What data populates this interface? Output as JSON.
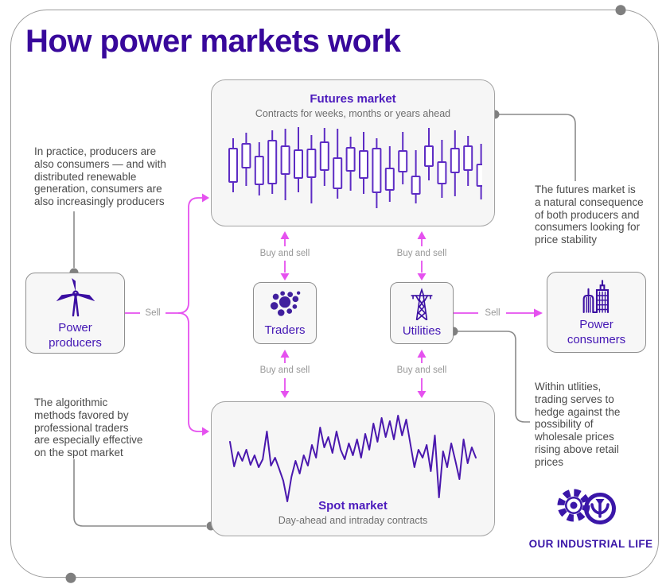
{
  "title": "How power markets work",
  "colors": {
    "title_indigo": "#38089b",
    "box_label_purple": "#4c1bbd",
    "node_label_purple": "#4316b4",
    "icon_indigo": "#3b0fa2",
    "magenta_flow": "#e551ef",
    "gray_connector": "#8a8a8a",
    "annotation_gray": "#4a4a4a",
    "box_fill": "#f6f6f6",
    "box_border": "#a3a3a3",
    "logo_purple": "#3a16a8"
  },
  "boxes": {
    "futures": {
      "title": "Futures market",
      "subtitle": "Contracts for weeks, months or years ahead"
    },
    "spot": {
      "title": "Spot market",
      "subtitle": "Day-ahead and intraday contracts"
    }
  },
  "nodes": {
    "producers": {
      "label": "Power\nproducers",
      "icon": "wind-turbine-icon"
    },
    "traders": {
      "label": "Traders",
      "icon": "bubble-cluster-icon"
    },
    "utilities": {
      "label": "Utilities",
      "icon": "transmission-tower-icon"
    },
    "consumers": {
      "label": "Power\nconsumers",
      "icon": "city-buildings-icon"
    }
  },
  "edge_labels": {
    "producers_sell": "Sell",
    "utilities_sell": "Sell",
    "futures_traders": "Buy and sell",
    "traders_spot": "Buy and sell",
    "futures_utilities": "Buy and sell",
    "utilities_spot": "Buy and sell"
  },
  "annotations": {
    "producers_note": "In practice, producers are\nalso consumers — and with\ndistributed renewable\ngeneration, consumers are\nalso increasingly producers",
    "futures_note": "The futures market is\na natural consequence\nof both producers and\nconsumers looking for\nprice stability",
    "spot_note": "The algorithmic\nmethods favored by\nprofessional traders\nare especially effective\non the spot market",
    "utilities_note": "Within utlities,\ntrading serves to\nhedge against the\npossibility of\nwholesale prices\nrising above retail\nprices"
  },
  "logo": {
    "text": "OUR INDUSTRIAL LIFE"
  },
  "chart_data": [
    {
      "type": "candlestick",
      "title": "Futures market",
      "context": "decorative sparkline inside Futures market box, no axes or tick labels",
      "color": "#5d2cc4",
      "candle_format": "[wick_top, body_top, body_bottom, wick_bottom] px, y increases downward",
      "candles": [
        [
          15,
          28,
          70,
          83
        ],
        [
          8,
          22,
          52,
          75
        ],
        [
          20,
          38,
          73,
          87
        ],
        [
          5,
          18,
          72,
          85
        ],
        [
          3,
          25,
          60,
          93
        ],
        [
          1,
          30,
          65,
          83
        ],
        [
          11,
          29,
          64,
          97
        ],
        [
          2,
          20,
          55,
          75
        ],
        [
          3,
          40,
          78,
          91
        ],
        [
          13,
          27,
          56,
          81
        ],
        [
          7,
          31,
          65,
          85
        ],
        [
          15,
          28,
          83,
          103
        ],
        [
          25,
          53,
          80,
          95
        ],
        [
          7,
          31,
          57,
          73
        ],
        [
          30,
          63,
          85,
          97
        ],
        [
          2,
          25,
          50,
          68
        ],
        [
          17,
          45,
          72,
          90
        ],
        [
          5,
          28,
          58,
          88
        ],
        [
          12,
          25,
          55,
          75
        ],
        [
          22,
          48,
          75,
          92
        ]
      ]
    },
    {
      "type": "line",
      "title": "Spot market",
      "context": "decorative jagged price sparkline inside Spot market box, no axes or tick labels",
      "color": "#4a18ae",
      "x_step": 5.15,
      "y_values": [
        38,
        69,
        51,
        62,
        48,
        67,
        55,
        70,
        60,
        25,
        68,
        58,
        72,
        87,
        113,
        82,
        62,
        78,
        55,
        68,
        42,
        58,
        20,
        45,
        32,
        52,
        25,
        48,
        60,
        40,
        55,
        35,
        58,
        28,
        48,
        15,
        38,
        8,
        32,
        12,
        35,
        5,
        30,
        10,
        40,
        70,
        48,
        58,
        42,
        75,
        30,
        108,
        50,
        70,
        40,
        62,
        85,
        35,
        65,
        45,
        58
      ]
    }
  ]
}
